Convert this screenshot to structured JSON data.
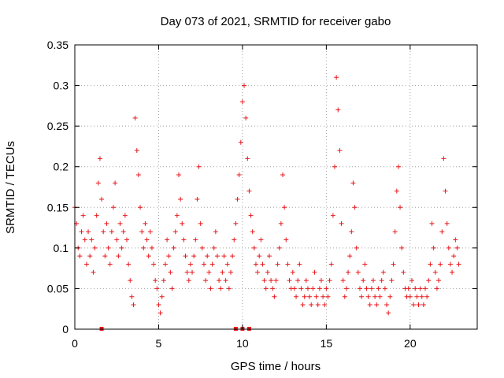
{
  "chart_data": {
    "type": "scatter",
    "title": "Day 073 of 2021, SRMTID for receiver gabo",
    "xlabel": "GPS time / hours",
    "ylabel": "SRMTID / TECUs",
    "xlim": [
      0,
      24
    ],
    "ylim": [
      0,
      0.35
    ],
    "x_ticks": [
      0,
      5,
      10,
      15,
      20
    ],
    "x_tick_labels": [
      "0",
      "5",
      "10",
      "15",
      "20"
    ],
    "y_ticks": [
      0,
      0.05,
      0.1,
      0.15,
      0.2,
      0.25,
      0.3,
      0.35
    ],
    "y_tick_labels": [
      "0",
      "0.05",
      "0.1",
      "0.15",
      "0.2",
      "0.25",
      "0.3",
      "0.35"
    ],
    "grid": true,
    "marker": "+",
    "series_color": "#e8191c",
    "zero_markers_x": [
      1.6,
      9.6,
      10.0,
      10.4
    ],
    "points": [
      [
        0.0,
        0.15
      ],
      [
        0.1,
        0.13
      ],
      [
        0.2,
        0.1
      ],
      [
        0.3,
        0.09
      ],
      [
        0.4,
        0.12
      ],
      [
        0.5,
        0.14
      ],
      [
        0.6,
        0.11
      ],
      [
        0.7,
        0.08
      ],
      [
        0.8,
        0.12
      ],
      [
        0.9,
        0.09
      ],
      [
        1.0,
        0.11
      ],
      [
        1.1,
        0.07
      ],
      [
        1.2,
        0.1
      ],
      [
        1.3,
        0.14
      ],
      [
        1.4,
        0.18
      ],
      [
        1.5,
        0.21
      ],
      [
        1.6,
        0.16
      ],
      [
        1.7,
        0.12
      ],
      [
        1.8,
        0.09
      ],
      [
        1.9,
        0.13
      ],
      [
        2.0,
        0.1
      ],
      [
        2.1,
        0.08
      ],
      [
        2.2,
        0.12
      ],
      [
        2.3,
        0.15
      ],
      [
        2.4,
        0.18
      ],
      [
        2.5,
        0.11
      ],
      [
        2.6,
        0.09
      ],
      [
        2.7,
        0.13
      ],
      [
        2.8,
        0.1
      ],
      [
        2.9,
        0.12
      ],
      [
        3.0,
        0.14
      ],
      [
        3.1,
        0.11
      ],
      [
        3.2,
        0.08
      ],
      [
        3.3,
        0.06
      ],
      [
        3.4,
        0.04
      ],
      [
        3.5,
        0.03
      ],
      [
        3.6,
        0.26
      ],
      [
        3.7,
        0.22
      ],
      [
        3.8,
        0.19
      ],
      [
        3.9,
        0.15
      ],
      [
        4.0,
        0.12
      ],
      [
        4.1,
        0.1
      ],
      [
        4.2,
        0.13
      ],
      [
        4.3,
        0.11
      ],
      [
        4.4,
        0.09
      ],
      [
        4.5,
        0.12
      ],
      [
        4.6,
        0.1
      ],
      [
        4.7,
        0.08
      ],
      [
        4.8,
        0.06
      ],
      [
        4.9,
        0.05
      ],
      [
        5.0,
        0.03
      ],
      [
        5.1,
        0.02
      ],
      [
        5.2,
        0.04
      ],
      [
        5.3,
        0.06
      ],
      [
        5.4,
        0.08
      ],
      [
        5.5,
        0.11
      ],
      [
        5.6,
        0.09
      ],
      [
        5.7,
        0.07
      ],
      [
        5.8,
        0.05
      ],
      [
        5.9,
        0.1
      ],
      [
        6.0,
        0.12
      ],
      [
        6.1,
        0.14
      ],
      [
        6.2,
        0.19
      ],
      [
        6.3,
        0.16
      ],
      [
        6.4,
        0.13
      ],
      [
        6.5,
        0.11
      ],
      [
        6.6,
        0.09
      ],
      [
        6.7,
        0.07
      ],
      [
        6.8,
        0.06
      ],
      [
        6.9,
        0.08
      ],
      [
        7.0,
        0.07
      ],
      [
        7.1,
        0.09
      ],
      [
        7.2,
        0.11
      ],
      [
        7.3,
        0.16
      ],
      [
        7.4,
        0.2
      ],
      [
        7.5,
        0.13
      ],
      [
        7.6,
        0.1
      ],
      [
        7.7,
        0.08
      ],
      [
        7.8,
        0.06
      ],
      [
        7.9,
        0.09
      ],
      [
        8.0,
        0.07
      ],
      [
        8.1,
        0.05
      ],
      [
        8.2,
        0.08
      ],
      [
        8.3,
        0.1
      ],
      [
        8.4,
        0.12
      ],
      [
        8.5,
        0.09
      ],
      [
        8.6,
        0.06
      ],
      [
        8.7,
        0.05
      ],
      [
        8.8,
        0.07
      ],
      [
        8.9,
        0.09
      ],
      [
        9.0,
        0.06
      ],
      [
        9.1,
        0.08
      ],
      [
        9.2,
        0.05
      ],
      [
        9.3,
        0.07
      ],
      [
        9.4,
        0.09
      ],
      [
        9.5,
        0.11
      ],
      [
        9.6,
        0.13
      ],
      [
        9.7,
        0.16
      ],
      [
        9.8,
        0.19
      ],
      [
        9.9,
        0.23
      ],
      [
        10.0,
        0.28
      ],
      [
        10.1,
        0.3
      ],
      [
        10.2,
        0.26
      ],
      [
        10.3,
        0.21
      ],
      [
        10.4,
        0.17
      ],
      [
        10.5,
        0.14
      ],
      [
        10.6,
        0.12
      ],
      [
        10.7,
        0.1
      ],
      [
        10.8,
        0.08
      ],
      [
        10.9,
        0.07
      ],
      [
        11.0,
        0.09
      ],
      [
        11.1,
        0.11
      ],
      [
        11.2,
        0.08
      ],
      [
        11.3,
        0.06
      ],
      [
        11.4,
        0.05
      ],
      [
        11.5,
        0.07
      ],
      [
        11.6,
        0.09
      ],
      [
        11.7,
        0.06
      ],
      [
        11.8,
        0.05
      ],
      [
        11.9,
        0.04
      ],
      [
        12.0,
        0.06
      ],
      [
        12.1,
        0.08
      ],
      [
        12.2,
        0.1
      ],
      [
        12.3,
        0.13
      ],
      [
        12.4,
        0.19
      ],
      [
        12.5,
        0.15
      ],
      [
        12.6,
        0.11
      ],
      [
        12.7,
        0.08
      ],
      [
        12.8,
        0.06
      ],
      [
        12.9,
        0.05
      ],
      [
        13.0,
        0.07
      ],
      [
        13.1,
        0.05
      ],
      [
        13.2,
        0.04
      ],
      [
        13.3,
        0.06
      ],
      [
        13.4,
        0.08
      ],
      [
        13.5,
        0.05
      ],
      [
        13.6,
        0.03
      ],
      [
        13.7,
        0.04
      ],
      [
        13.8,
        0.06
      ],
      [
        13.9,
        0.05
      ],
      [
        14.0,
        0.04
      ],
      [
        14.1,
        0.03
      ],
      [
        14.2,
        0.05
      ],
      [
        14.3,
        0.07
      ],
      [
        14.4,
        0.04
      ],
      [
        14.5,
        0.03
      ],
      [
        14.6,
        0.05
      ],
      [
        14.7,
        0.06
      ],
      [
        14.8,
        0.04
      ],
      [
        14.9,
        0.03
      ],
      [
        15.0,
        0.05
      ],
      [
        15.1,
        0.04
      ],
      [
        15.2,
        0.06
      ],
      [
        15.3,
        0.08
      ],
      [
        15.4,
        0.14
      ],
      [
        15.5,
        0.2
      ],
      [
        15.6,
        0.31
      ],
      [
        15.7,
        0.27
      ],
      [
        15.8,
        0.22
      ],
      [
        15.9,
        0.13
      ],
      [
        16.0,
        0.06
      ],
      [
        16.1,
        0.04
      ],
      [
        16.2,
        0.05
      ],
      [
        16.3,
        0.07
      ],
      [
        16.4,
        0.09
      ],
      [
        16.5,
        0.12
      ],
      [
        16.6,
        0.18
      ],
      [
        16.7,
        0.15
      ],
      [
        16.8,
        0.1
      ],
      [
        16.9,
        0.07
      ],
      [
        17.0,
        0.05
      ],
      [
        17.1,
        0.04
      ],
      [
        17.2,
        0.06
      ],
      [
        17.3,
        0.08
      ],
      [
        17.4,
        0.05
      ],
      [
        17.5,
        0.04
      ],
      [
        17.6,
        0.03
      ],
      [
        17.7,
        0.05
      ],
      [
        17.8,
        0.06
      ],
      [
        17.9,
        0.04
      ],
      [
        18.0,
        0.03
      ],
      [
        18.1,
        0.05
      ],
      [
        18.2,
        0.04
      ],
      [
        18.3,
        0.06
      ],
      [
        18.4,
        0.07
      ],
      [
        18.5,
        0.05
      ],
      [
        18.6,
        0.03
      ],
      [
        18.7,
        0.02
      ],
      [
        18.8,
        0.04
      ],
      [
        18.9,
        0.06
      ],
      [
        19.0,
        0.08
      ],
      [
        19.1,
        0.12
      ],
      [
        19.2,
        0.17
      ],
      [
        19.3,
        0.2
      ],
      [
        19.4,
        0.15
      ],
      [
        19.5,
        0.1
      ],
      [
        19.6,
        0.07
      ],
      [
        19.7,
        0.05
      ],
      [
        19.8,
        0.04
      ],
      [
        19.9,
        0.05
      ],
      [
        20.0,
        0.04
      ],
      [
        20.1,
        0.06
      ],
      [
        20.2,
        0.03
      ],
      [
        20.3,
        0.05
      ],
      [
        20.4,
        0.04
      ],
      [
        20.5,
        0.03
      ],
      [
        20.6,
        0.05
      ],
      [
        20.7,
        0.04
      ],
      [
        20.8,
        0.03
      ],
      [
        20.9,
        0.05
      ],
      [
        21.0,
        0.04
      ],
      [
        21.1,
        0.06
      ],
      [
        21.2,
        0.08
      ],
      [
        21.3,
        0.13
      ],
      [
        21.4,
        0.1
      ],
      [
        21.5,
        0.07
      ],
      [
        21.6,
        0.05
      ],
      [
        21.7,
        0.06
      ],
      [
        21.8,
        0.08
      ],
      [
        21.9,
        0.12
      ],
      [
        22.0,
        0.21
      ],
      [
        22.1,
        0.17
      ],
      [
        22.2,
        0.13
      ],
      [
        22.3,
        0.1
      ],
      [
        22.4,
        0.08
      ],
      [
        22.5,
        0.07
      ],
      [
        22.6,
        0.09
      ],
      [
        22.7,
        0.11
      ],
      [
        22.8,
        0.1
      ],
      [
        22.9,
        0.08
      ]
    ]
  }
}
